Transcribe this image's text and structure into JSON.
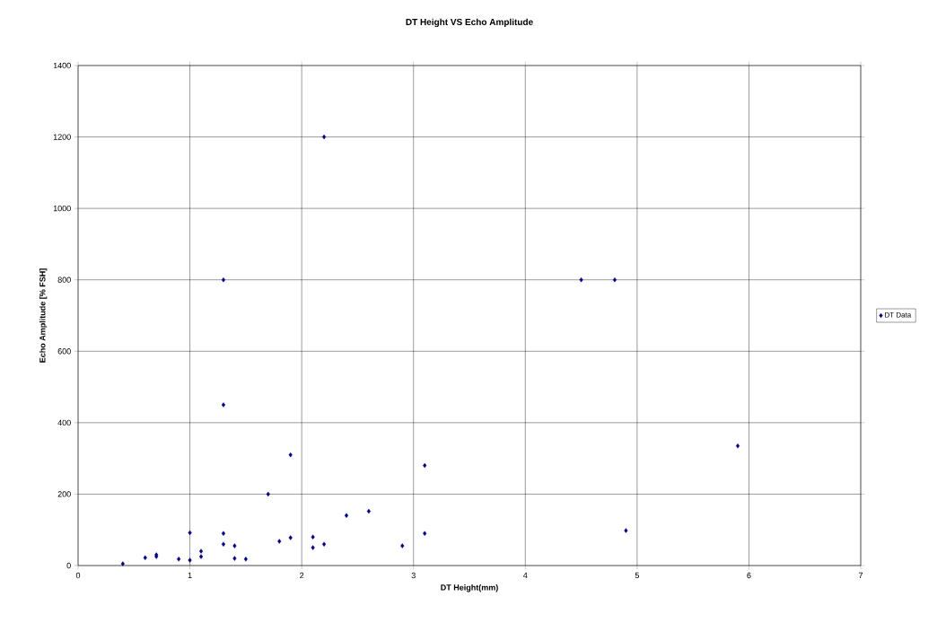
{
  "chart_data": {
    "type": "scatter",
    "title": "DT Height VS Echo Amplitude",
    "xlabel": "DT Height(mm)",
    "ylabel": "Echo Amplitude [% FSH]",
    "series": [
      {
        "name": "DT Data",
        "color": "#000080",
        "x": [
          0.4,
          0.6,
          0.7,
          0.7,
          0.9,
          1.0,
          1.0,
          1.1,
          1.1,
          1.3,
          1.3,
          1.3,
          1.3,
          1.4,
          1.4,
          1.5,
          1.7,
          1.8,
          1.9,
          1.9,
          2.1,
          2.1,
          2.2,
          2.2,
          2.4,
          2.6,
          2.9,
          3.1,
          3.1,
          4.5,
          4.8,
          4.9,
          5.9
        ],
        "values": [
          5,
          22,
          25,
          30,
          18,
          92,
          15,
          40,
          25,
          800,
          450,
          90,
          60,
          55,
          20,
          18,
          200,
          68,
          310,
          78,
          80,
          50,
          1200,
          60,
          140,
          152,
          55,
          280,
          90,
          800,
          800,
          98,
          335
        ]
      }
    ],
    "xlim": [
      0,
      7
    ],
    "xticks": [
      0,
      1,
      2,
      3,
      4,
      5,
      6,
      7
    ],
    "ylim": [
      0,
      1400
    ],
    "yticks": [
      0,
      200,
      400,
      600,
      800,
      1000,
      1200,
      1400
    ],
    "grid": true,
    "legend": "right",
    "marker": "diamond"
  }
}
